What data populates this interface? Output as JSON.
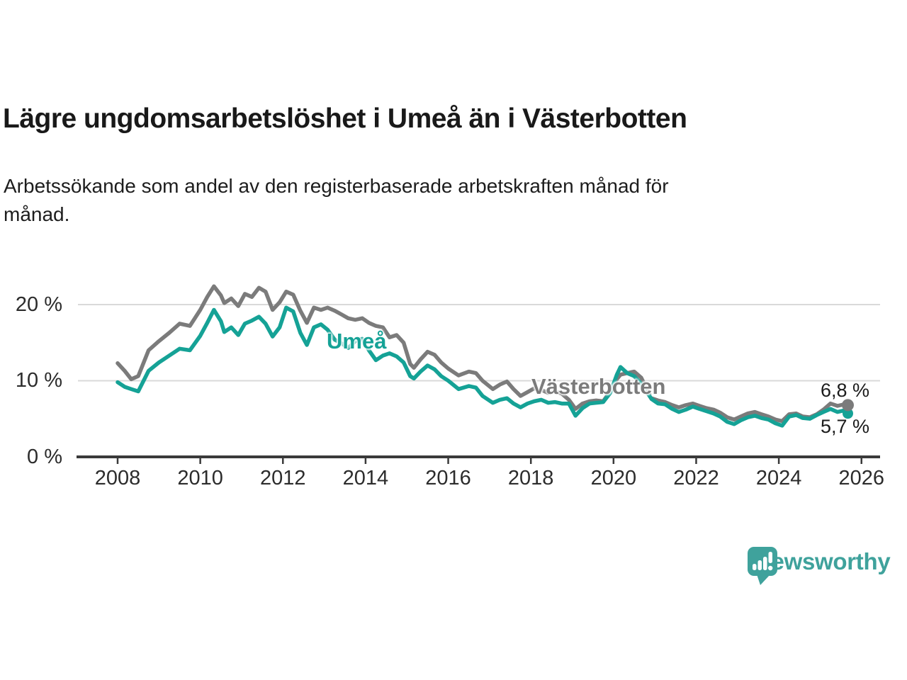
{
  "header": {
    "title": "Lägre ungdomsarbetslöshet i Umeå än i Västerbotten",
    "subtitle_line1": "Arbetssökande som andel av den registerbaserade arbetskraften månad för",
    "subtitle_line2": "månad."
  },
  "footer": {
    "brand": "Newsworthy",
    "brand_color": "#3fa29c"
  },
  "chart_data": {
    "type": "line",
    "title": "Lägre ungdomsarbetslöshet i Umeå än i Västerbotten",
    "subtitle": "Arbetssökande som andel av den registerbaserade arbetskraften månad för månad.",
    "xlabel": "",
    "ylabel": "",
    "xlim": [
      2007.04,
      2026.45
    ],
    "ylim": [
      0,
      22.79
    ],
    "grid": "horizontal",
    "grid_color": "#d9d9d9",
    "axis_color": "#3a3a3a",
    "legend_position": "inline-labels",
    "x_ticks": [
      "2008",
      "2010",
      "2012",
      "2014",
      "2016",
      "2018",
      "2020",
      "2022",
      "2024",
      "2026"
    ],
    "y_ticks": [
      {
        "value": 0,
        "label": "0 %"
      },
      {
        "value": 10,
        "label": "10 %"
      },
      {
        "value": 20,
        "label": "20 %"
      }
    ],
    "dash_break": {
      "from": 2020.67,
      "to": 2020.92
    },
    "x": [
      2008.0,
      2008.17,
      2008.33,
      2008.5,
      2008.75,
      2009.0,
      2009.25,
      2009.5,
      2009.75,
      2010.0,
      2010.17,
      2010.33,
      2010.5,
      2010.58,
      2010.75,
      2010.92,
      2011.08,
      2011.25,
      2011.42,
      2011.58,
      2011.75,
      2011.92,
      2012.08,
      2012.25,
      2012.42,
      2012.58,
      2012.75,
      2012.92,
      2013.08,
      2013.25,
      2013.42,
      2013.58,
      2013.75,
      2013.92,
      2014.08,
      2014.25,
      2014.42,
      2014.58,
      2014.75,
      2014.92,
      2015.08,
      2015.17,
      2015.33,
      2015.5,
      2015.67,
      2015.83,
      2016.0,
      2016.25,
      2016.5,
      2016.67,
      2016.83,
      2017.08,
      2017.25,
      2017.42,
      2017.58,
      2017.75,
      2017.92,
      2018.08,
      2018.25,
      2018.42,
      2018.58,
      2018.75,
      2018.92,
      2019.08,
      2019.25,
      2019.42,
      2019.58,
      2019.75,
      2019.92,
      2020.08,
      2020.17,
      2020.33,
      2020.5,
      2020.67,
      2020.92,
      2021.08,
      2021.25,
      2021.42,
      2021.58,
      2021.75,
      2021.92,
      2022.08,
      2022.25,
      2022.42,
      2022.58,
      2022.75,
      2022.92,
      2023.08,
      2023.25,
      2023.42,
      2023.58,
      2023.75,
      2023.92,
      2024.08,
      2024.25,
      2024.42,
      2024.58,
      2024.75,
      2024.92,
      2025.08,
      2025.25,
      2025.42,
      2025.58,
      2025.67
    ],
    "series": [
      {
        "name": "Västerbotten",
        "color": "#7b7b7b",
        "end_label": "6,8 %",
        "end_value": 6.8,
        "values": [
          12.3,
          11.3,
          10.2,
          10.6,
          14.0,
          15.2,
          16.3,
          17.5,
          17.2,
          19.3,
          21.0,
          22.4,
          21.2,
          20.2,
          20.8,
          19.8,
          21.4,
          21.0,
          22.2,
          21.7,
          19.3,
          20.3,
          21.7,
          21.3,
          19.2,
          17.6,
          19.6,
          19.3,
          19.6,
          19.2,
          18.7,
          18.2,
          18.0,
          18.2,
          17.6,
          17.2,
          17.0,
          15.7,
          16.0,
          15.0,
          12.2,
          11.7,
          12.8,
          13.8,
          13.4,
          12.4,
          11.6,
          10.7,
          11.2,
          11.0,
          10.0,
          8.9,
          9.5,
          9.9,
          8.9,
          8.0,
          8.5,
          9.0,
          8.8,
          8.4,
          8.6,
          8.3,
          7.5,
          6.3,
          7.0,
          7.3,
          7.4,
          7.3,
          8.6,
          10.2,
          10.8,
          11.0,
          11.2,
          10.4,
          7.7,
          7.4,
          7.2,
          6.8,
          6.5,
          6.8,
          7.0,
          6.7,
          6.4,
          6.2,
          5.8,
          5.2,
          4.9,
          5.3,
          5.7,
          5.9,
          5.6,
          5.3,
          4.9,
          4.7,
          5.6,
          5.7,
          5.3,
          5.2,
          5.6,
          6.2,
          7.0,
          6.7,
          6.9,
          6.8
        ]
      },
      {
        "name": "Umeå",
        "color": "#15a296",
        "end_label": "5,7 %",
        "end_value": 5.7,
        "values": [
          9.8,
          9.2,
          8.9,
          8.6,
          11.3,
          12.4,
          13.3,
          14.2,
          14.0,
          15.9,
          17.6,
          19.3,
          17.8,
          16.4,
          17.0,
          16.0,
          17.5,
          17.9,
          18.4,
          17.5,
          15.8,
          17.0,
          19.6,
          19.1,
          16.3,
          14.7,
          17.0,
          17.4,
          16.7,
          15.4,
          14.9,
          14.3,
          15.2,
          15.5,
          14.0,
          12.7,
          13.3,
          13.6,
          13.2,
          12.4,
          10.6,
          10.3,
          11.2,
          12.0,
          11.5,
          10.6,
          10.0,
          8.9,
          9.3,
          9.1,
          8.0,
          7.1,
          7.5,
          7.7,
          7.0,
          6.5,
          7.0,
          7.3,
          7.5,
          7.1,
          7.2,
          7.0,
          7.0,
          5.4,
          6.4,
          7.0,
          7.1,
          7.2,
          8.4,
          10.8,
          11.8,
          11.0,
          10.6,
          9.6,
          7.6,
          7.0,
          6.9,
          6.3,
          5.9,
          6.2,
          6.6,
          6.3,
          6.0,
          5.7,
          5.3,
          4.6,
          4.3,
          4.8,
          5.2,
          5.4,
          5.1,
          4.9,
          4.4,
          4.1,
          5.3,
          5.5,
          5.1,
          5.0,
          5.5,
          5.9,
          6.3,
          5.9,
          6.1,
          5.7
        ]
      }
    ]
  }
}
